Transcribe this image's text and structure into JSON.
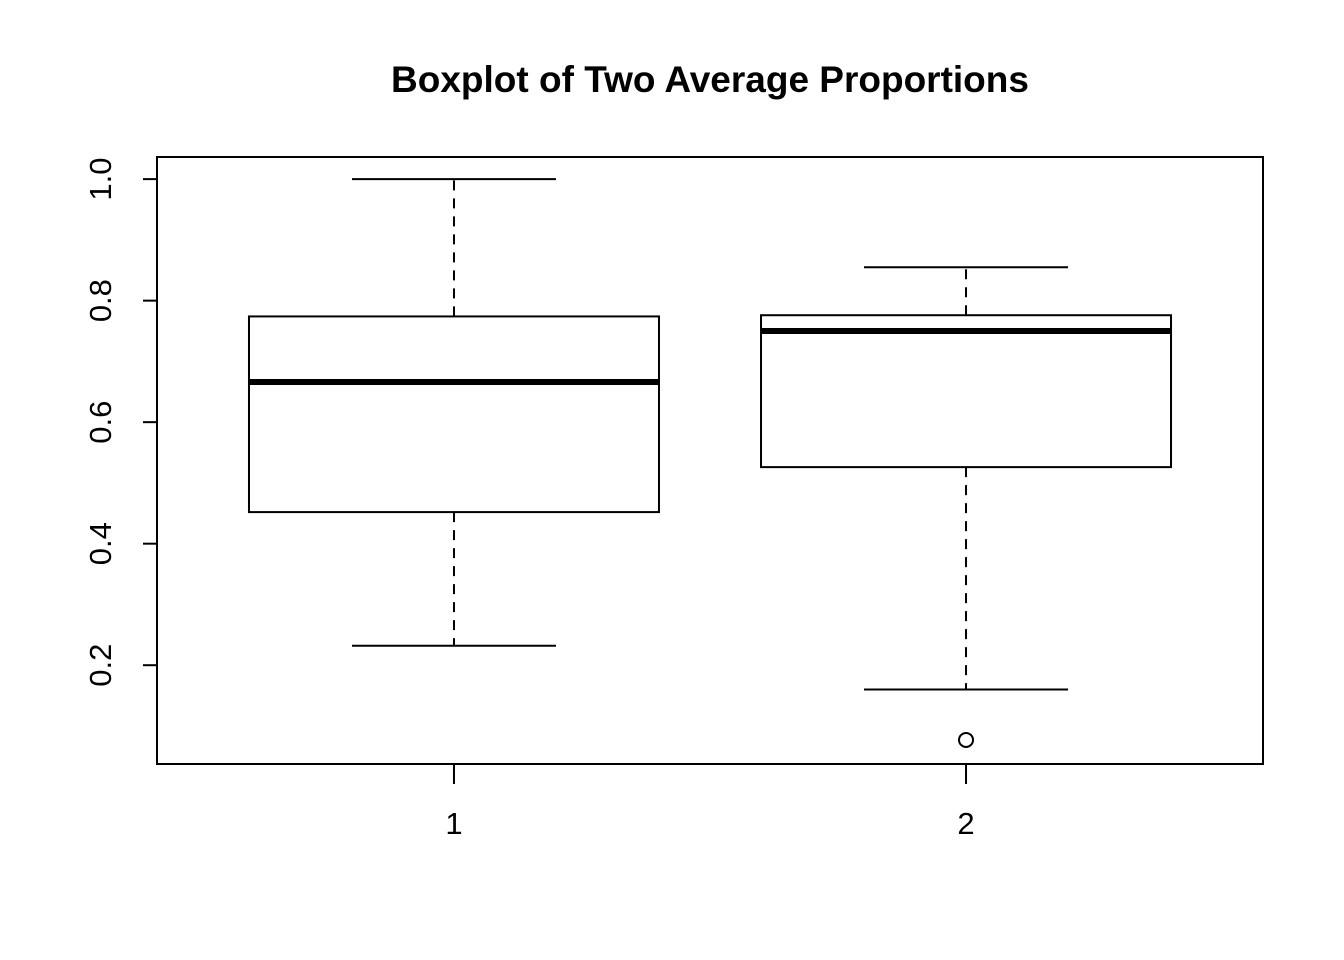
{
  "chart_data": {
    "type": "boxplot",
    "title": "Boxplot of Two Average Proportions",
    "xlabel": "",
    "ylabel": "",
    "categories": [
      "1",
      "2"
    ],
    "ylim": [
      0.0374,
      1.0364
    ],
    "yticks": [
      0.2,
      0.4,
      0.6,
      0.8,
      1.0
    ],
    "ytick_labels": [
      "0.2",
      "0.4",
      "0.6",
      "0.8",
      "1.0"
    ],
    "boxes": [
      {
        "category": "1",
        "whisker_low": 0.232,
        "q1": 0.452,
        "median": 0.666,
        "q3": 0.774,
        "whisker_high": 1.0,
        "outliers": []
      },
      {
        "category": "2",
        "whisker_low": 0.16,
        "q1": 0.526,
        "median": 0.75,
        "q3": 0.776,
        "whisker_high": 0.855,
        "outliers": [
          0.077
        ]
      }
    ],
    "grid": false,
    "legend": "none"
  }
}
